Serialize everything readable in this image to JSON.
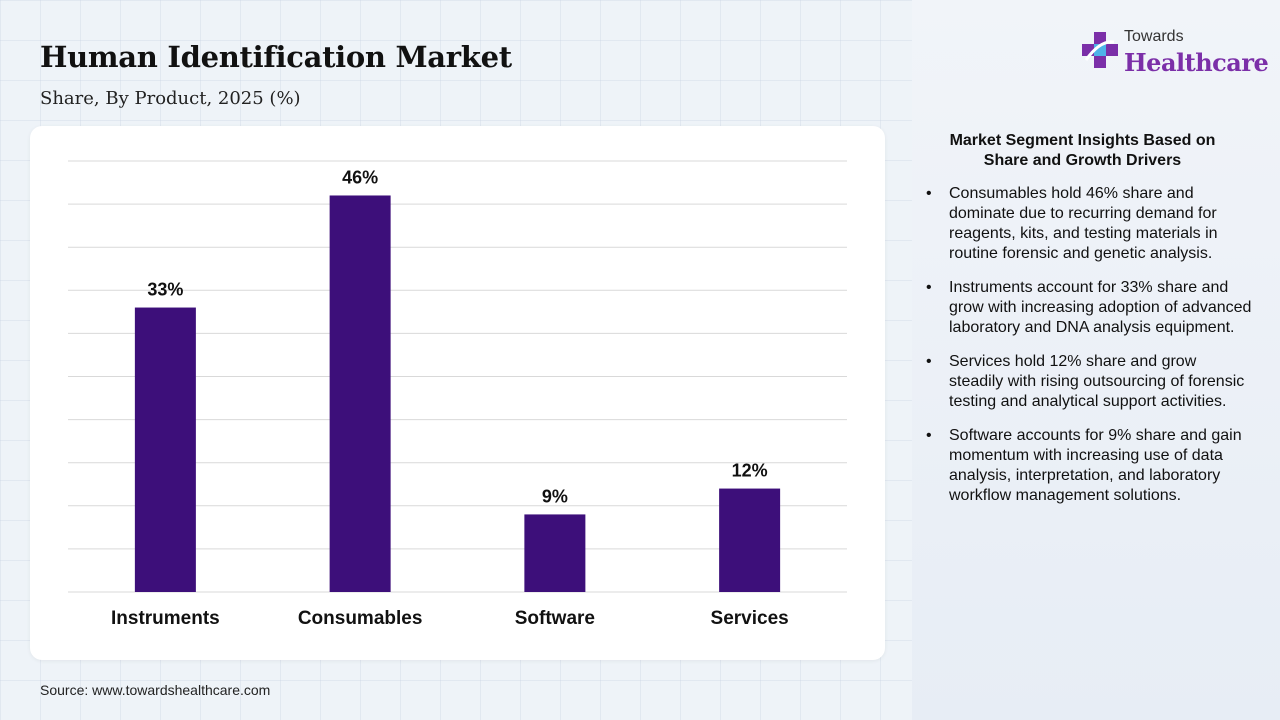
{
  "header": {
    "title": "Human Identification Market",
    "subtitle": "Share, By Product, 2025 (%)"
  },
  "logo": {
    "top": "Towards",
    "main": "Healthcare"
  },
  "chart_data": {
    "type": "bar",
    "categories": [
      "Instruments",
      "Consumables",
      "Software",
      "Services"
    ],
    "values": [
      33,
      46,
      9,
      12
    ],
    "value_labels": [
      "33%",
      "46%",
      "9%",
      "12%"
    ],
    "ylim": [
      0,
      50
    ],
    "grid": true,
    "bar_color": "#3d0f7a"
  },
  "insights": {
    "title": "Market Segment Insights Based on Share and Growth Drivers",
    "items": [
      "Consumables hold 46% share and dominate due to recurring demand for reagents, kits, and testing materials in routine forensic and genetic analysis.",
      "Instruments account for 33% share and grow with increasing adoption of advanced laboratory and DNA analysis equipment.",
      "Services hold 12% share and grow steadily with rising outsourcing of forensic testing and analytical support activities.",
      "Software accounts for 9% share and gain momentum with increasing use of data analysis, interpretation, and laboratory workflow management solutions."
    ]
  },
  "footer": {
    "source": "Source: www.towardshealthcare.com"
  }
}
